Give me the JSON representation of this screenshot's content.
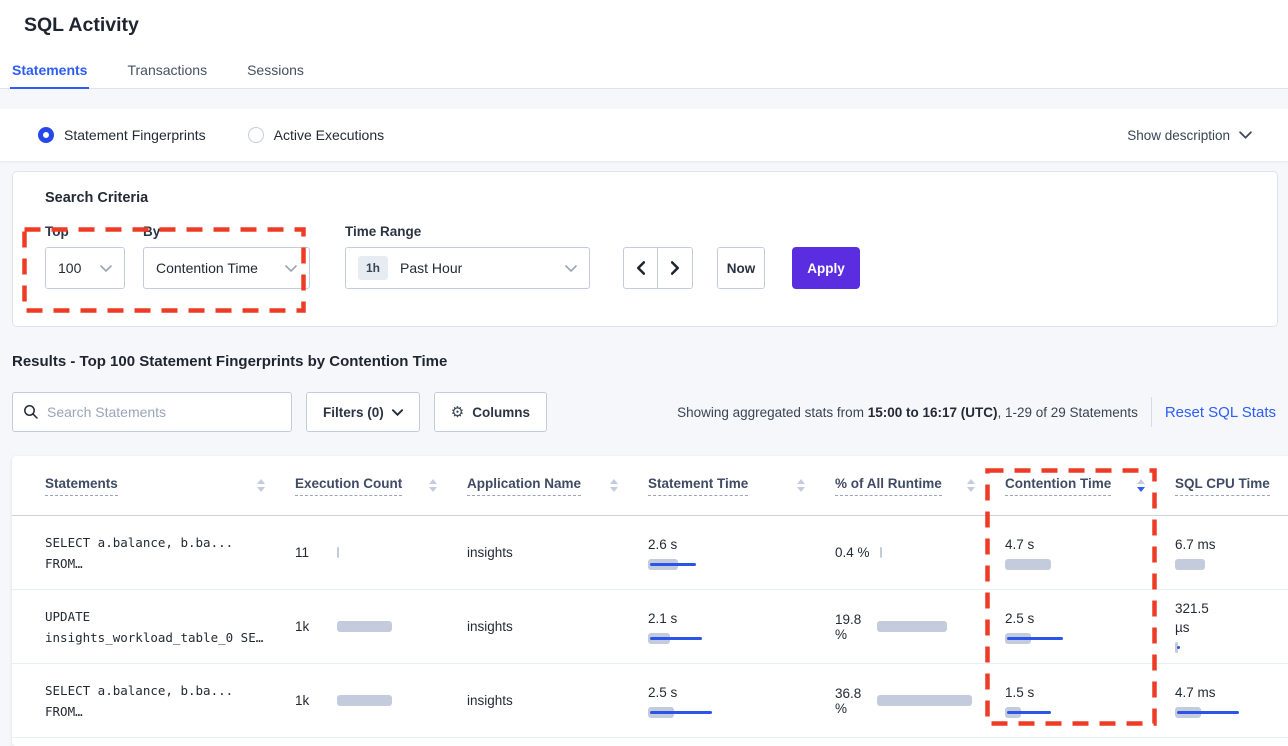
{
  "header": {
    "title": "SQL Activity"
  },
  "tabs": [
    {
      "label": "Statements",
      "active": true
    },
    {
      "label": "Transactions",
      "active": false
    },
    {
      "label": "Sessions",
      "active": false
    }
  ],
  "view_bar": {
    "options": [
      {
        "label": "Statement Fingerprints",
        "selected": true
      },
      {
        "label": "Active Executions",
        "selected": false
      }
    ],
    "show_description_label": "Show description"
  },
  "search_criteria": {
    "title": "Search Criteria",
    "top_label": "Top",
    "top_value": "100",
    "by_label": "By",
    "by_value": "Contention Time",
    "time_range_label": "Time Range",
    "time_badge": "1h",
    "time_value": "Past Hour",
    "now_button": "Now",
    "apply_button": "Apply"
  },
  "results": {
    "heading": "Results - Top 100 Statement Fingerprints by Contention Time",
    "search_placeholder": "Search Statements",
    "filters_button": "Filters (0)",
    "columns_button": "Columns",
    "showing": {
      "prefix": "Showing aggregated stats from ",
      "range": "15:00 to 16:17 (UTC)",
      "suffix": ", 1-29 of 29 Statements"
    },
    "reset_link": "Reset SQL Stats"
  },
  "table": {
    "headers": [
      {
        "label": "Statements",
        "sort": "none"
      },
      {
        "label": "Execution Count",
        "sort": "none"
      },
      {
        "label": "Application Name",
        "sort": "none"
      },
      {
        "label": "Statement Time",
        "sort": "none"
      },
      {
        "label": "% of All Runtime",
        "sort": "none"
      },
      {
        "label": "Contention Time",
        "sort": "desc"
      },
      {
        "label": "SQL CPU Time",
        "sort": "hidden"
      }
    ],
    "rows": [
      {
        "statement": "SELECT a.balance, b.ba...\nFROM…",
        "execution_count": {
          "text": "11",
          "gray": 2,
          "blue": 0
        },
        "application_name": "insights",
        "statement_time": {
          "text": "2.6 s",
          "gray": 30,
          "blue": 46
        },
        "pct_runtime": {
          "text": "0.4 %",
          "gray": 2,
          "blue": 0
        },
        "contention_time": {
          "text": "4.7 s",
          "gray": 46,
          "blue": 0
        },
        "sql_cpu_time": {
          "text": "6.7 ms",
          "gray": 30,
          "blue": 0
        }
      },
      {
        "statement": "UPDATE\ninsights_workload_table_0 SE…",
        "execution_count": {
          "text": "1k",
          "gray": 55,
          "blue": 0
        },
        "application_name": "insights",
        "statement_time": {
          "text": "2.1 s",
          "gray": 22,
          "blue": 52
        },
        "pct_runtime": {
          "text": "19.8\n%",
          "gray": 70,
          "blue": 0
        },
        "contention_time": {
          "text": "2.5 s",
          "gray": 26,
          "blue": 56
        },
        "sql_cpu_time": {
          "text": "321.5\nµs",
          "gray": 3,
          "blue": 3
        }
      },
      {
        "statement": "SELECT a.balance, b.ba...\nFROM…",
        "execution_count": {
          "text": "1k",
          "gray": 55,
          "blue": 0
        },
        "application_name": "insights",
        "statement_time": {
          "text": "2.5 s",
          "gray": 26,
          "blue": 62
        },
        "pct_runtime": {
          "text": "36.8\n%",
          "gray": 95,
          "blue": 0
        },
        "contention_time": {
          "text": "1.5 s",
          "gray": 16,
          "blue": 44
        },
        "sql_cpu_time": {
          "text": "4.7 ms",
          "gray": 26,
          "blue": 62
        }
      }
    ]
  },
  "colors": {
    "accent_blue": "#2d5cf6",
    "apply_button_purple": "#5a2ee0",
    "bar_gray": "#c4cbdc",
    "bar_blue": "#2b54e8",
    "annotation_red": "#ee3b26"
  }
}
